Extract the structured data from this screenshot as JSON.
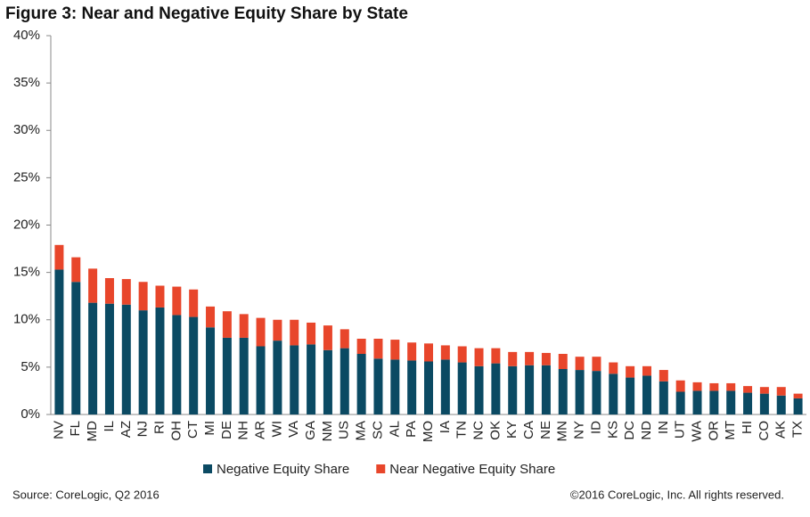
{
  "chart_data": {
    "type": "stacked_bar",
    "title": "Figure 3: Near and Negative Equity Share by State",
    "source": "Source: CoreLogic, Q2  2016",
    "copyright": "©2016 CoreLogic, Inc. All rights reserved.",
    "categories": [
      "NV",
      "FL",
      "MD",
      "IL",
      "AZ",
      "NJ",
      "RI",
      "OH",
      "CT",
      "MI",
      "DE",
      "NH",
      "AR",
      "WI",
      "VA",
      "GA",
      "NM",
      "US",
      "MA",
      "SC",
      "AL",
      "PA",
      "MO",
      "IA",
      "TN",
      "NC",
      "OK",
      "KY",
      "CA",
      "NE",
      "MN",
      "NY",
      "ID",
      "KS",
      "DC",
      "ND",
      "IN",
      "UT",
      "WA",
      "OR",
      "MT",
      "HI",
      "CO",
      "AK",
      "TX"
    ],
    "series": [
      {
        "name": "Negative Equity Share",
        "color": "#0b4a63",
        "values": [
          15.3,
          14.0,
          11.8,
          11.7,
          11.6,
          11.0,
          11.3,
          10.5,
          10.3,
          9.2,
          8.1,
          8.1,
          7.2,
          7.8,
          7.3,
          7.4,
          6.8,
          7.0,
          6.4,
          5.9,
          5.8,
          5.7,
          5.6,
          5.8,
          5.5,
          5.1,
          5.4,
          5.1,
          5.2,
          5.2,
          4.8,
          4.7,
          4.6,
          4.3,
          3.9,
          4.1,
          3.5,
          2.4,
          2.5,
          2.5,
          2.5,
          2.3,
          2.2,
          2.0,
          1.7
        ]
      },
      {
        "name": "Near Negative Equity Share",
        "color": "#e8462b",
        "values": [
          2.6,
          2.6,
          3.6,
          2.7,
          2.7,
          3.0,
          2.3,
          3.0,
          2.9,
          2.2,
          2.8,
          2.5,
          3.0,
          2.2,
          2.7,
          2.3,
          2.6,
          2.0,
          1.6,
          2.1,
          2.1,
          1.9,
          1.9,
          1.5,
          1.7,
          1.9,
          1.6,
          1.5,
          1.4,
          1.3,
          1.6,
          1.4,
          1.5,
          1.2,
          1.2,
          1.0,
          1.2,
          1.2,
          0.9,
          0.8,
          0.8,
          0.7,
          0.7,
          0.9,
          0.5
        ]
      }
    ],
    "ylim": [
      0,
      40
    ],
    "yticks": [
      {
        "value": 0,
        "label": "0%"
      },
      {
        "value": 5,
        "label": "5%"
      },
      {
        "value": 10,
        "label": "10%"
      },
      {
        "value": 15,
        "label": "15%"
      },
      {
        "value": 20,
        "label": "20%"
      },
      {
        "value": 25,
        "label": "25%"
      },
      {
        "value": 30,
        "label": "30%"
      },
      {
        "value": 35,
        "label": "35%"
      },
      {
        "value": 40,
        "label": "40%"
      }
    ],
    "grid": false,
    "legend": "bottom"
  }
}
